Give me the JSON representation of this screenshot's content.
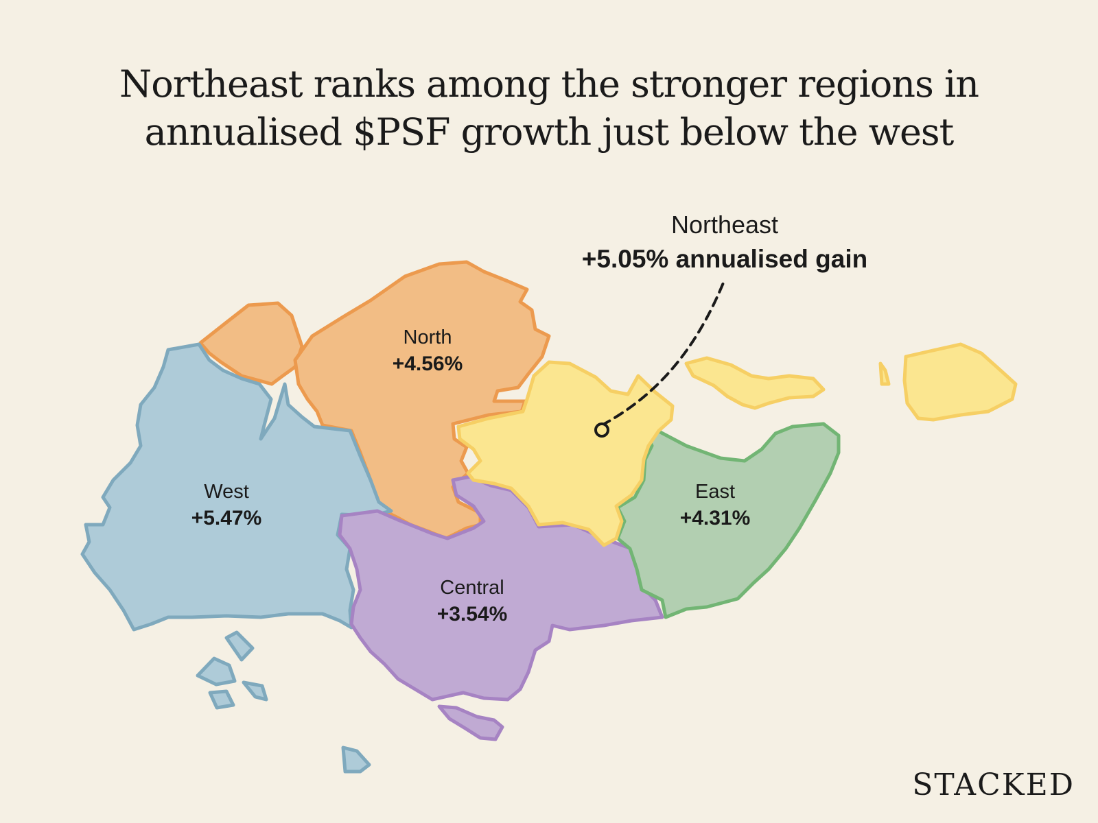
{
  "title": {
    "line1": "Northeast ranks among the stronger regions in",
    "line2": "annualised $PSF growth just below the west"
  },
  "regions": {
    "north": {
      "name": "North",
      "value": "+4.56%",
      "fill": "#f2bd85",
      "stroke": "#ec9a4e"
    },
    "west": {
      "name": "West",
      "value": "+5.47%",
      "fill": "#aecbd8",
      "stroke": "#7fa9bd"
    },
    "central": {
      "name": "Central",
      "value": "+3.54%",
      "fill": "#c0aad3",
      "stroke": "#a683c3"
    },
    "east": {
      "name": "East",
      "value": "+4.31%",
      "fill": "#b2cfb1",
      "stroke": "#72b574"
    },
    "northeast": {
      "fill": "#fbe690",
      "stroke": "#f6cf64"
    }
  },
  "callout": {
    "name": "Northeast",
    "value": "+5.05% annualised gain"
  },
  "brand": "STACKED"
}
